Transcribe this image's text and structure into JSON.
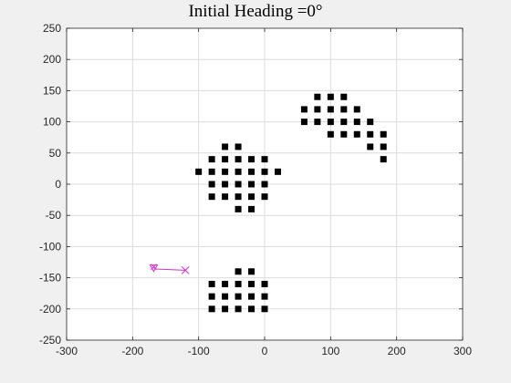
{
  "chart_data": {
    "type": "scatter",
    "title": "Initial Heading =0°",
    "xlabel": "",
    "ylabel": "",
    "xlim": [
      -300,
      300
    ],
    "ylim": [
      -250,
      250
    ],
    "xticks": [
      -300,
      -200,
      -100,
      0,
      100,
      200,
      300
    ],
    "yticks": [
      -250,
      -200,
      -150,
      -100,
      -50,
      0,
      50,
      100,
      150,
      200,
      250
    ],
    "grid": true,
    "colors": {
      "obstacle": "#000000",
      "path": "#cc33cc",
      "background": "#f0f0f0",
      "axes": "#ffffff",
      "grid": "#dcdcdc"
    },
    "series": [
      {
        "type": "scatter",
        "marker": "square",
        "color": "#000000",
        "points": [
          [
            80,
            140
          ],
          [
            100,
            140
          ],
          [
            120,
            140
          ],
          [
            60,
            120
          ],
          [
            80,
            120
          ],
          [
            100,
            120
          ],
          [
            120,
            120
          ],
          [
            140,
            120
          ],
          [
            60,
            100
          ],
          [
            80,
            100
          ],
          [
            100,
            100
          ],
          [
            120,
            100
          ],
          [
            140,
            100
          ],
          [
            160,
            100
          ],
          [
            100,
            80
          ],
          [
            120,
            80
          ],
          [
            140,
            80
          ],
          [
            160,
            80
          ],
          [
            180,
            80
          ],
          [
            160,
            60
          ],
          [
            180,
            60
          ],
          [
            180,
            40
          ],
          [
            -60,
            60
          ],
          [
            -40,
            60
          ],
          [
            -80,
            40
          ],
          [
            -60,
            40
          ],
          [
            -40,
            40
          ],
          [
            -20,
            40
          ],
          [
            0,
            40
          ],
          [
            -100,
            20
          ],
          [
            -80,
            20
          ],
          [
            -60,
            20
          ],
          [
            -40,
            20
          ],
          [
            -20,
            20
          ],
          [
            0,
            20
          ],
          [
            20,
            20
          ],
          [
            -80,
            0
          ],
          [
            -60,
            0
          ],
          [
            -40,
            0
          ],
          [
            -20,
            0
          ],
          [
            0,
            0
          ],
          [
            -80,
            -20
          ],
          [
            -60,
            -20
          ],
          [
            -40,
            -20
          ],
          [
            -20,
            -20
          ],
          [
            0,
            -20
          ],
          [
            -40,
            -40
          ],
          [
            -20,
            -40
          ],
          [
            -40,
            -140
          ],
          [
            -20,
            -140
          ],
          [
            -80,
            -160
          ],
          [
            -60,
            -160
          ],
          [
            -40,
            -160
          ],
          [
            -20,
            -160
          ],
          [
            0,
            -160
          ],
          [
            -80,
            -180
          ],
          [
            -60,
            -180
          ],
          [
            -40,
            -180
          ],
          [
            -20,
            -180
          ],
          [
            0,
            -180
          ],
          [
            -80,
            -200
          ],
          [
            -60,
            -200
          ],
          [
            -40,
            -200
          ],
          [
            -20,
            -200
          ],
          [
            0,
            -200
          ]
        ]
      },
      {
        "type": "line",
        "color": "#cc33cc",
        "points": [
          [
            -168,
            -134
          ],
          [
            -165,
            -136
          ],
          [
            -120,
            -138
          ]
        ],
        "start_marker": "triangle-down",
        "end_marker": "x"
      }
    ]
  }
}
